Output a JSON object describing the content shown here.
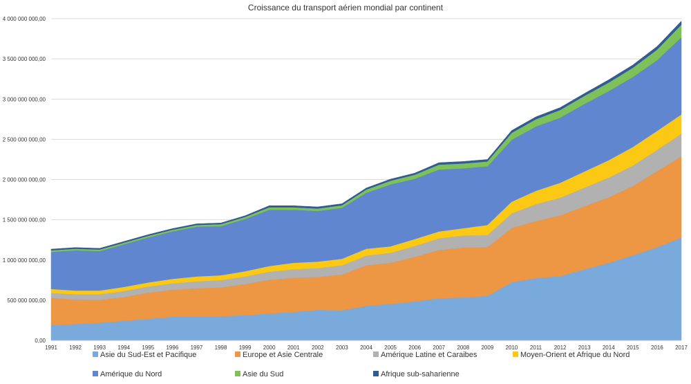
{
  "chart_data": {
    "type": "area",
    "stacked": true,
    "title": "Croissance du transport aérien mondial par continent",
    "xlabel": "",
    "ylabel": "",
    "ylim": [
      0,
      4000000000
    ],
    "y_ticks": [
      0,
      500000000,
      1000000000,
      1500000000,
      2000000000,
      2500000000,
      3000000000,
      3500000000,
      4000000000
    ],
    "y_tick_labels": [
      "0,00",
      "500 000 000,00",
      "1 000 000 000,00",
      "1 500 000 000,00",
      "2 000 000 000,00",
      "2 500 000 000,00",
      "3 000 000 000,00",
      "3 500 000 000,00",
      "4 000 000 000,00"
    ],
    "grid": true,
    "legend_position": "bottom",
    "categories": [
      "1991",
      "1992",
      "1993",
      "1994",
      "1995",
      "1996",
      "1997",
      "1998",
      "1999",
      "2000",
      "2001",
      "2002",
      "2003",
      "2004",
      "2005",
      "2006",
      "2007",
      "2008",
      "2009",
      "2010",
      "2011",
      "2012",
      "2013",
      "2014",
      "2015",
      "2016",
      "2017"
    ],
    "series": [
      {
        "name": "Asie du Sud-Est et Pacifique",
        "color": "#7aaadc",
        "values": [
          190000000,
          205000000,
          220000000,
          245000000,
          270000000,
          295000000,
          295000000,
          300000000,
          315000000,
          335000000,
          355000000,
          380000000,
          375000000,
          430000000,
          455000000,
          485000000,
          525000000,
          535000000,
          555000000,
          725000000,
          775000000,
          800000000,
          885000000,
          965000000,
          1060000000,
          1160000000,
          1280000000
        ]
      },
      {
        "name": "Europe et Asie Centrale",
        "color": "#ed9644",
        "values": [
          340000000,
          305000000,
          285000000,
          295000000,
          325000000,
          335000000,
          355000000,
          360000000,
          385000000,
          420000000,
          425000000,
          410000000,
          445000000,
          505000000,
          510000000,
          555000000,
          600000000,
          620000000,
          605000000,
          675000000,
          710000000,
          755000000,
          785000000,
          815000000,
          860000000,
          945000000,
          1010000000
        ]
      },
      {
        "name": "Amérique Latine et Caraibes",
        "color": "#b1b1b1",
        "values": [
          60000000,
          65000000,
          70000000,
          75000000,
          75000000,
          80000000,
          85000000,
          90000000,
          95000000,
          100000000,
          105000000,
          110000000,
          115000000,
          120000000,
          125000000,
          135000000,
          145000000,
          150000000,
          150000000,
          180000000,
          210000000,
          220000000,
          230000000,
          245000000,
          255000000,
          265000000,
          280000000
        ]
      },
      {
        "name": "Moyen-Orient et Afrique du Nord",
        "color": "#fbc814",
        "values": [
          50000000,
          45000000,
          45000000,
          50000000,
          50000000,
          55000000,
          60000000,
          60000000,
          65000000,
          70000000,
          80000000,
          80000000,
          80000000,
          85000000,
          80000000,
          85000000,
          85000000,
          90000000,
          125000000,
          145000000,
          165000000,
          185000000,
          200000000,
          215000000,
          230000000,
          235000000,
          240000000
        ]
      },
      {
        "name": "Amérique du Nord",
        "color": "#5f86cf",
        "values": [
          460000000,
          500000000,
          490000000,
          530000000,
          560000000,
          590000000,
          620000000,
          610000000,
          650000000,
          700000000,
          660000000,
          630000000,
          635000000,
          695000000,
          770000000,
          750000000,
          770000000,
          745000000,
          730000000,
          770000000,
          800000000,
          810000000,
          840000000,
          860000000,
          870000000,
          880000000,
          960000000
        ]
      },
      {
        "name": "Asie du Sud",
        "color": "#7ec159",
        "values": [
          20000000,
          20000000,
          20000000,
          20000000,
          20000000,
          20000000,
          20000000,
          25000000,
          25000000,
          30000000,
          30000000,
          30000000,
          30000000,
          40000000,
          45000000,
          50000000,
          60000000,
          60000000,
          60000000,
          85000000,
          90000000,
          95000000,
          100000000,
          105000000,
          115000000,
          130000000,
          155000000
        ]
      },
      {
        "name": "Afrique sub-saharienne",
        "color": "#2f5d93",
        "values": [
          15000000,
          15000000,
          15000000,
          15000000,
          15000000,
          15000000,
          15000000,
          15000000,
          15000000,
          20000000,
          20000000,
          20000000,
          20000000,
          20000000,
          20000000,
          20000000,
          25000000,
          25000000,
          25000000,
          30000000,
          30000000,
          30000000,
          30000000,
          35000000,
          35000000,
          40000000,
          45000000
        ]
      }
    ]
  }
}
